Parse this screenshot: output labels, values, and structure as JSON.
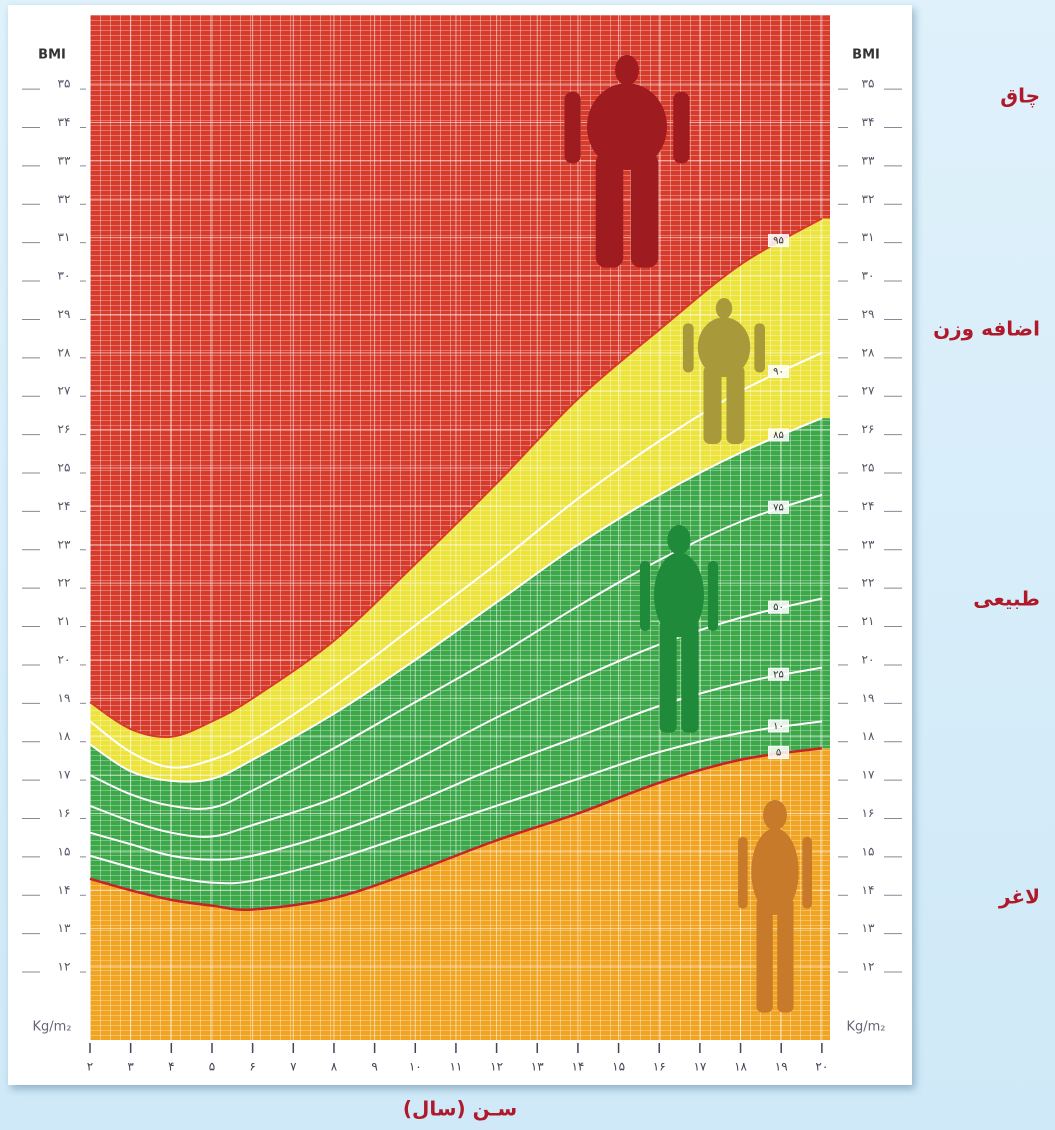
{
  "chart_data": {
    "type": "percentile-zones",
    "y_label": "BMI",
    "unit_label": "Kg/m₂",
    "x_label": "سـن (سال)",
    "xlim": [
      2,
      20.2
    ],
    "ylim": [
      10.1,
      36.8
    ],
    "grid": true,
    "x": [
      2,
      3,
      4,
      5,
      6,
      8,
      10,
      12,
      14,
      16,
      18,
      20
    ],
    "xticks": [
      {
        "value": 2,
        "label": "۲"
      },
      {
        "value": 3,
        "label": "۳"
      },
      {
        "value": 4,
        "label": "۴"
      },
      {
        "value": 5,
        "label": "۵"
      },
      {
        "value": 6,
        "label": "۶"
      },
      {
        "value": 7,
        "label": "۷"
      },
      {
        "value": 8,
        "label": "۸"
      },
      {
        "value": 9,
        "label": "۹"
      },
      {
        "value": 10,
        "label": "۱۰"
      },
      {
        "value": 11,
        "label": "۱۱"
      },
      {
        "value": 12,
        "label": "۱۲"
      },
      {
        "value": 13,
        "label": "۱۳"
      },
      {
        "value": 14,
        "label": "۱۴"
      },
      {
        "value": 15,
        "label": "۱۵"
      },
      {
        "value": 16,
        "label": "۱۶"
      },
      {
        "value": 17,
        "label": "۱۷"
      },
      {
        "value": 18,
        "label": "۱۸"
      },
      {
        "value": 19,
        "label": "۱۹"
      },
      {
        "value": 20,
        "label": "۲۰"
      }
    ],
    "yticks": [
      {
        "value": 12,
        "label": "۱۲"
      },
      {
        "value": 13,
        "label": "۱۳"
      },
      {
        "value": 14,
        "label": "۱۴"
      },
      {
        "value": 15,
        "label": "۱۵"
      },
      {
        "value": 16,
        "label": "۱۶"
      },
      {
        "value": 17,
        "label": "۱۷"
      },
      {
        "value": 18,
        "label": "۱۸"
      },
      {
        "value": 19,
        "label": "۱۹"
      },
      {
        "value": 20,
        "label": "۲۰"
      },
      {
        "value": 21,
        "label": "۲۱"
      },
      {
        "value": 22,
        "label": "۲۲"
      },
      {
        "value": 23,
        "label": "۲۳"
      },
      {
        "value": 24,
        "label": "۲۴"
      },
      {
        "value": 25,
        "label": "۲۵"
      },
      {
        "value": 26,
        "label": "۲۶"
      },
      {
        "value": 27,
        "label": "۲۷"
      },
      {
        "value": 28,
        "label": "۲۸"
      },
      {
        "value": 29,
        "label": "۲۹"
      },
      {
        "value": 30,
        "label": "۳۰"
      },
      {
        "value": 31,
        "label": "۳۱"
      },
      {
        "value": 32,
        "label": "۳۲"
      },
      {
        "value": 33,
        "label": "۳۳"
      },
      {
        "value": 34,
        "label": "۳۴"
      },
      {
        "value": 35,
        "label": "۳۵"
      }
    ],
    "series": [
      {
        "name": "۹۵",
        "color": "#d63b2c",
        "boundary": true,
        "values": [
          18.9,
          18.2,
          18.0,
          18.4,
          19.0,
          20.5,
          22.5,
          24.6,
          26.8,
          28.6,
          30.3,
          31.5
        ]
      },
      {
        "name": "۹۰",
        "color": "#ffffff",
        "values": [
          18.4,
          17.6,
          17.2,
          17.4,
          17.9,
          19.3,
          20.9,
          22.5,
          24.2,
          25.7,
          27.0,
          28.0
        ]
      },
      {
        "name": "۸۵",
        "color": "#ffffff",
        "boundary": true,
        "values": [
          17.8,
          17.1,
          16.85,
          16.9,
          17.4,
          18.6,
          20.0,
          21.5,
          23.0,
          24.3,
          25.4,
          26.3
        ]
      },
      {
        "name": "۷۵",
        "color": "#ffffff",
        "values": [
          17.0,
          16.5,
          16.2,
          16.15,
          16.6,
          17.7,
          18.9,
          20.1,
          21.4,
          22.6,
          23.6,
          24.3
        ]
      },
      {
        "name": "۵۰",
        "color": "#ffffff",
        "values": [
          16.2,
          15.8,
          15.5,
          15.4,
          15.7,
          16.4,
          17.4,
          18.5,
          19.5,
          20.4,
          21.1,
          21.6
        ]
      },
      {
        "name": "۲۵",
        "color": "#ffffff",
        "values": [
          15.5,
          15.2,
          14.9,
          14.8,
          14.9,
          15.5,
          16.3,
          17.2,
          18.0,
          18.8,
          19.4,
          19.8
        ]
      },
      {
        "name": "۱۰",
        "color": "#ffffff",
        "values": [
          14.9,
          14.6,
          14.35,
          14.2,
          14.25,
          14.8,
          15.5,
          16.2,
          16.9,
          17.6,
          18.1,
          18.4
        ]
      },
      {
        "name": "۵",
        "color": "#c8222a",
        "boundary": true,
        "values": [
          14.3,
          14.0,
          13.75,
          13.6,
          13.5,
          13.8,
          14.5,
          15.3,
          16.0,
          16.8,
          17.4,
          17.7
        ]
      }
    ],
    "zones": [
      {
        "label": "چاق",
        "color": "#d63b2c"
      },
      {
        "label": "اضافه وزن",
        "color": "#ece43c"
      },
      {
        "label": "طبیعی",
        "color": "#3da84a"
      },
      {
        "label": "لاغر",
        "color": "#f0a422"
      }
    ]
  }
}
